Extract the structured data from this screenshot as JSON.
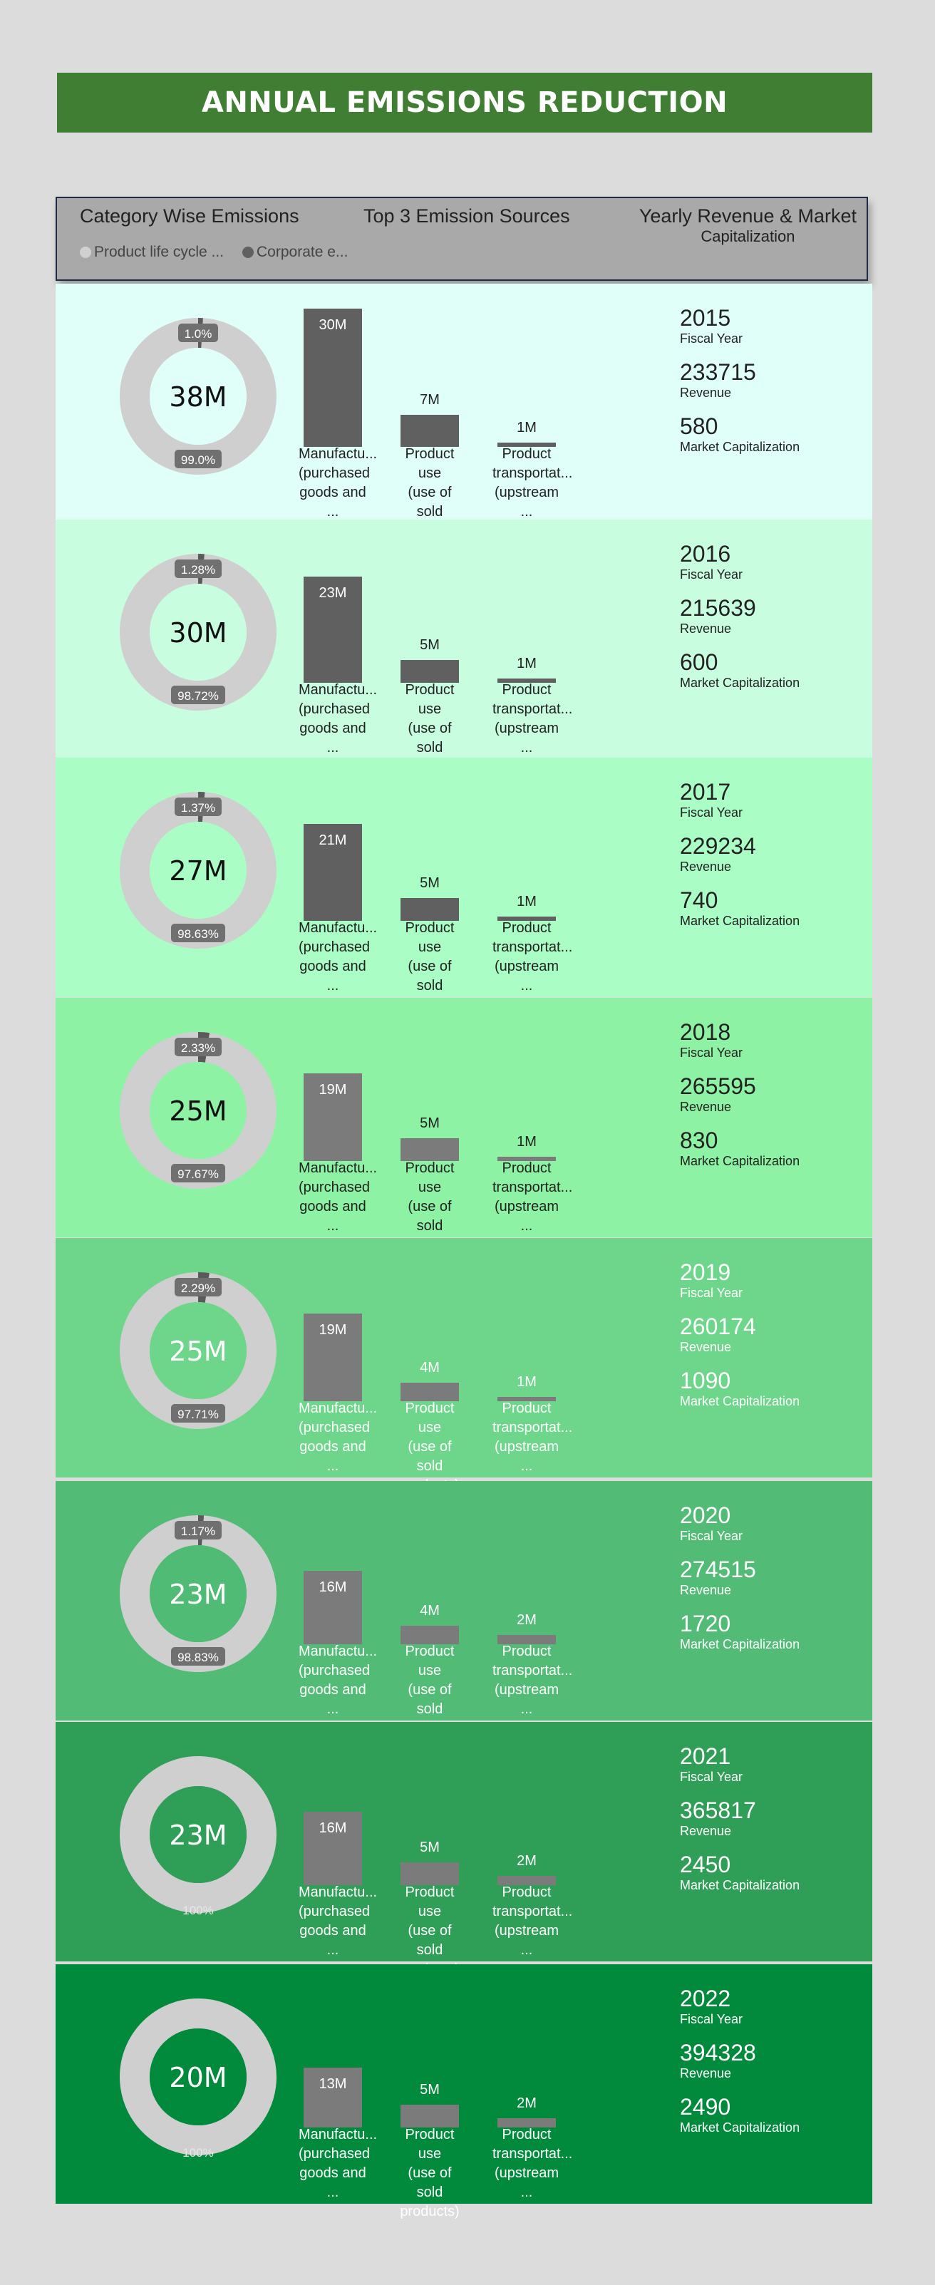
{
  "title": "ANNUAL EMISSIONS REDUCTION",
  "header": {
    "category": "Category Wise Emissions",
    "top3": "Top 3 Emission Sources",
    "revenue_l1": "Yearly Revenue & Market",
    "revenue_l2": "Capitalization",
    "legend": [
      {
        "label": "Product life cycle ...",
        "color": "#d0d0d0"
      },
      {
        "label": "Corporate e...",
        "color": "#606060"
      }
    ]
  },
  "labels": {
    "fiscal_year": "Fiscal Year",
    "revenue": "Revenue",
    "market_cap": "Market Capitalization",
    "sources": [
      [
        "Manufactu...",
        "(purchased",
        "goods and ..."
      ],
      [
        "Product use",
        "(use of sold",
        "products)"
      ],
      [
        "Product",
        "transportat...",
        "(upstream ..."
      ]
    ]
  },
  "chart_data": {
    "type": "bar",
    "rows": [
      {
        "year": "2015",
        "total": "38M",
        "corp_pct": "1.0%",
        "plc_pct": "99.0%",
        "corp_frac": 0.01,
        "bars": [
          30,
          7,
          1
        ],
        "bar_labels": [
          "30M",
          "7M",
          "1M"
        ],
        "revenue": "233715",
        "market_cap": "580",
        "bg": "#e0fff8",
        "text": "#222222",
        "bar_color": "#606060",
        "donut_hole": "#e0fff8"
      },
      {
        "year": "2016",
        "total": "30M",
        "corp_pct": "1.28%",
        "plc_pct": "98.72%",
        "corp_frac": 0.0128,
        "bars": [
          23,
          5,
          1
        ],
        "bar_labels": [
          "23M",
          "5M",
          "1M"
        ],
        "revenue": "215639",
        "market_cap": "600",
        "bg": "#c8fde0",
        "text": "#222222",
        "bar_color": "#606060",
        "donut_hole": "#c8fde0"
      },
      {
        "year": "2017",
        "total": "27M",
        "corp_pct": "1.37%",
        "plc_pct": "98.63%",
        "corp_frac": 0.0137,
        "bars": [
          21,
          5,
          1
        ],
        "bar_labels": [
          "21M",
          "5M",
          "1M"
        ],
        "revenue": "229234",
        "market_cap": "740",
        "bg": "#a9fdc5",
        "text": "#222222",
        "bar_color": "#606060",
        "donut_hole": "#a9fdc5"
      },
      {
        "year": "2018",
        "total": "25M",
        "corp_pct": "2.33%",
        "plc_pct": "97.67%",
        "corp_frac": 0.0233,
        "bars": [
          19,
          5,
          1
        ],
        "bar_labels": [
          "19M",
          "5M",
          "1M"
        ],
        "revenue": "265595",
        "market_cap": "830",
        "bg": "#8df2a4",
        "text": "#222222",
        "bar_color": "#7b7b7b",
        "donut_hole": "#8df2a4"
      },
      {
        "year": "2019",
        "total": "25M",
        "corp_pct": "2.29%",
        "plc_pct": "97.71%",
        "corp_frac": 0.0229,
        "bars": [
          19,
          4,
          1
        ],
        "bar_labels": [
          "19M",
          "4M",
          "1M"
        ],
        "revenue": "260174",
        "market_cap": "1090",
        "bg": "#6dd68a",
        "text": "#ffffff",
        "bar_color": "#7b7b7b",
        "donut_hole": "#6dd68a"
      },
      {
        "year": "2020",
        "total": "23M",
        "corp_pct": "1.17%",
        "plc_pct": "98.83%",
        "corp_frac": 0.0117,
        "bars": [
          16,
          4,
          2
        ],
        "bar_labels": [
          "16M",
          "4M",
          "2M"
        ],
        "revenue": "274515",
        "market_cap": "1720",
        "bg": "#52bc76",
        "text": "#ffffff",
        "bar_color": "#7b7b7b",
        "donut_hole": "#4fbb74"
      },
      {
        "year": "2021",
        "total": "23M",
        "corp_pct": "",
        "plc_pct": "100%",
        "corp_frac": 0,
        "bars": [
          16,
          5,
          2
        ],
        "bar_labels": [
          "16M",
          "5M",
          "2M"
        ],
        "revenue": "365817",
        "market_cap": "2450",
        "bg": "#2f9e56",
        "text": "#ffffff",
        "bar_color": "#7b7b7b",
        "donut_hole": "#2f9e56"
      },
      {
        "year": "2022",
        "total": "20M",
        "corp_pct": "",
        "plc_pct": "100%",
        "corp_frac": 0,
        "bars": [
          13,
          5,
          2
        ],
        "bar_labels": [
          "13M",
          "5M",
          "2M"
        ],
        "revenue": "394328",
        "market_cap": "2490",
        "bg": "#028a3c",
        "text": "#ffffff",
        "bar_color": "#7b7b7b",
        "donut_hole": "#028a3c"
      }
    ]
  }
}
